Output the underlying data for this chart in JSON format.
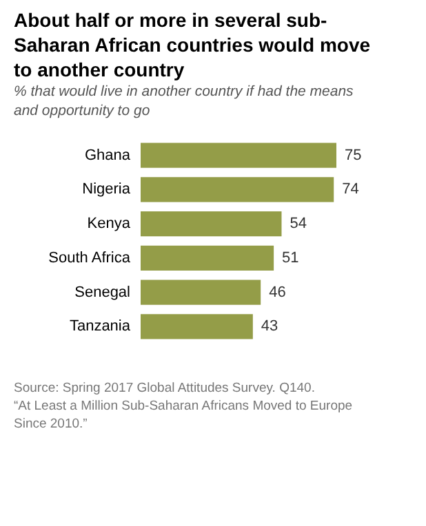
{
  "chart_data": {
    "type": "bar",
    "orientation": "horizontal",
    "title": "About half or more in several sub-Saharan African countries would move to another country",
    "subtitle": "% that would live in another country if had the means and opportunity to go",
    "categories": [
      "Ghana",
      "Nigeria",
      "Kenya",
      "South Africa",
      "Senegal",
      "Tanzania"
    ],
    "values": [
      75,
      74,
      54,
      51,
      46,
      43
    ],
    "color": "#949d48",
    "data_labels": true,
    "grid": false,
    "annotations": [
      "Source: Spring 2017 Global Attitudes Survey. Q140.",
      "“At Least a Million Sub-Saharan Africans Moved to Europe Since 2010.”"
    ]
  }
}
